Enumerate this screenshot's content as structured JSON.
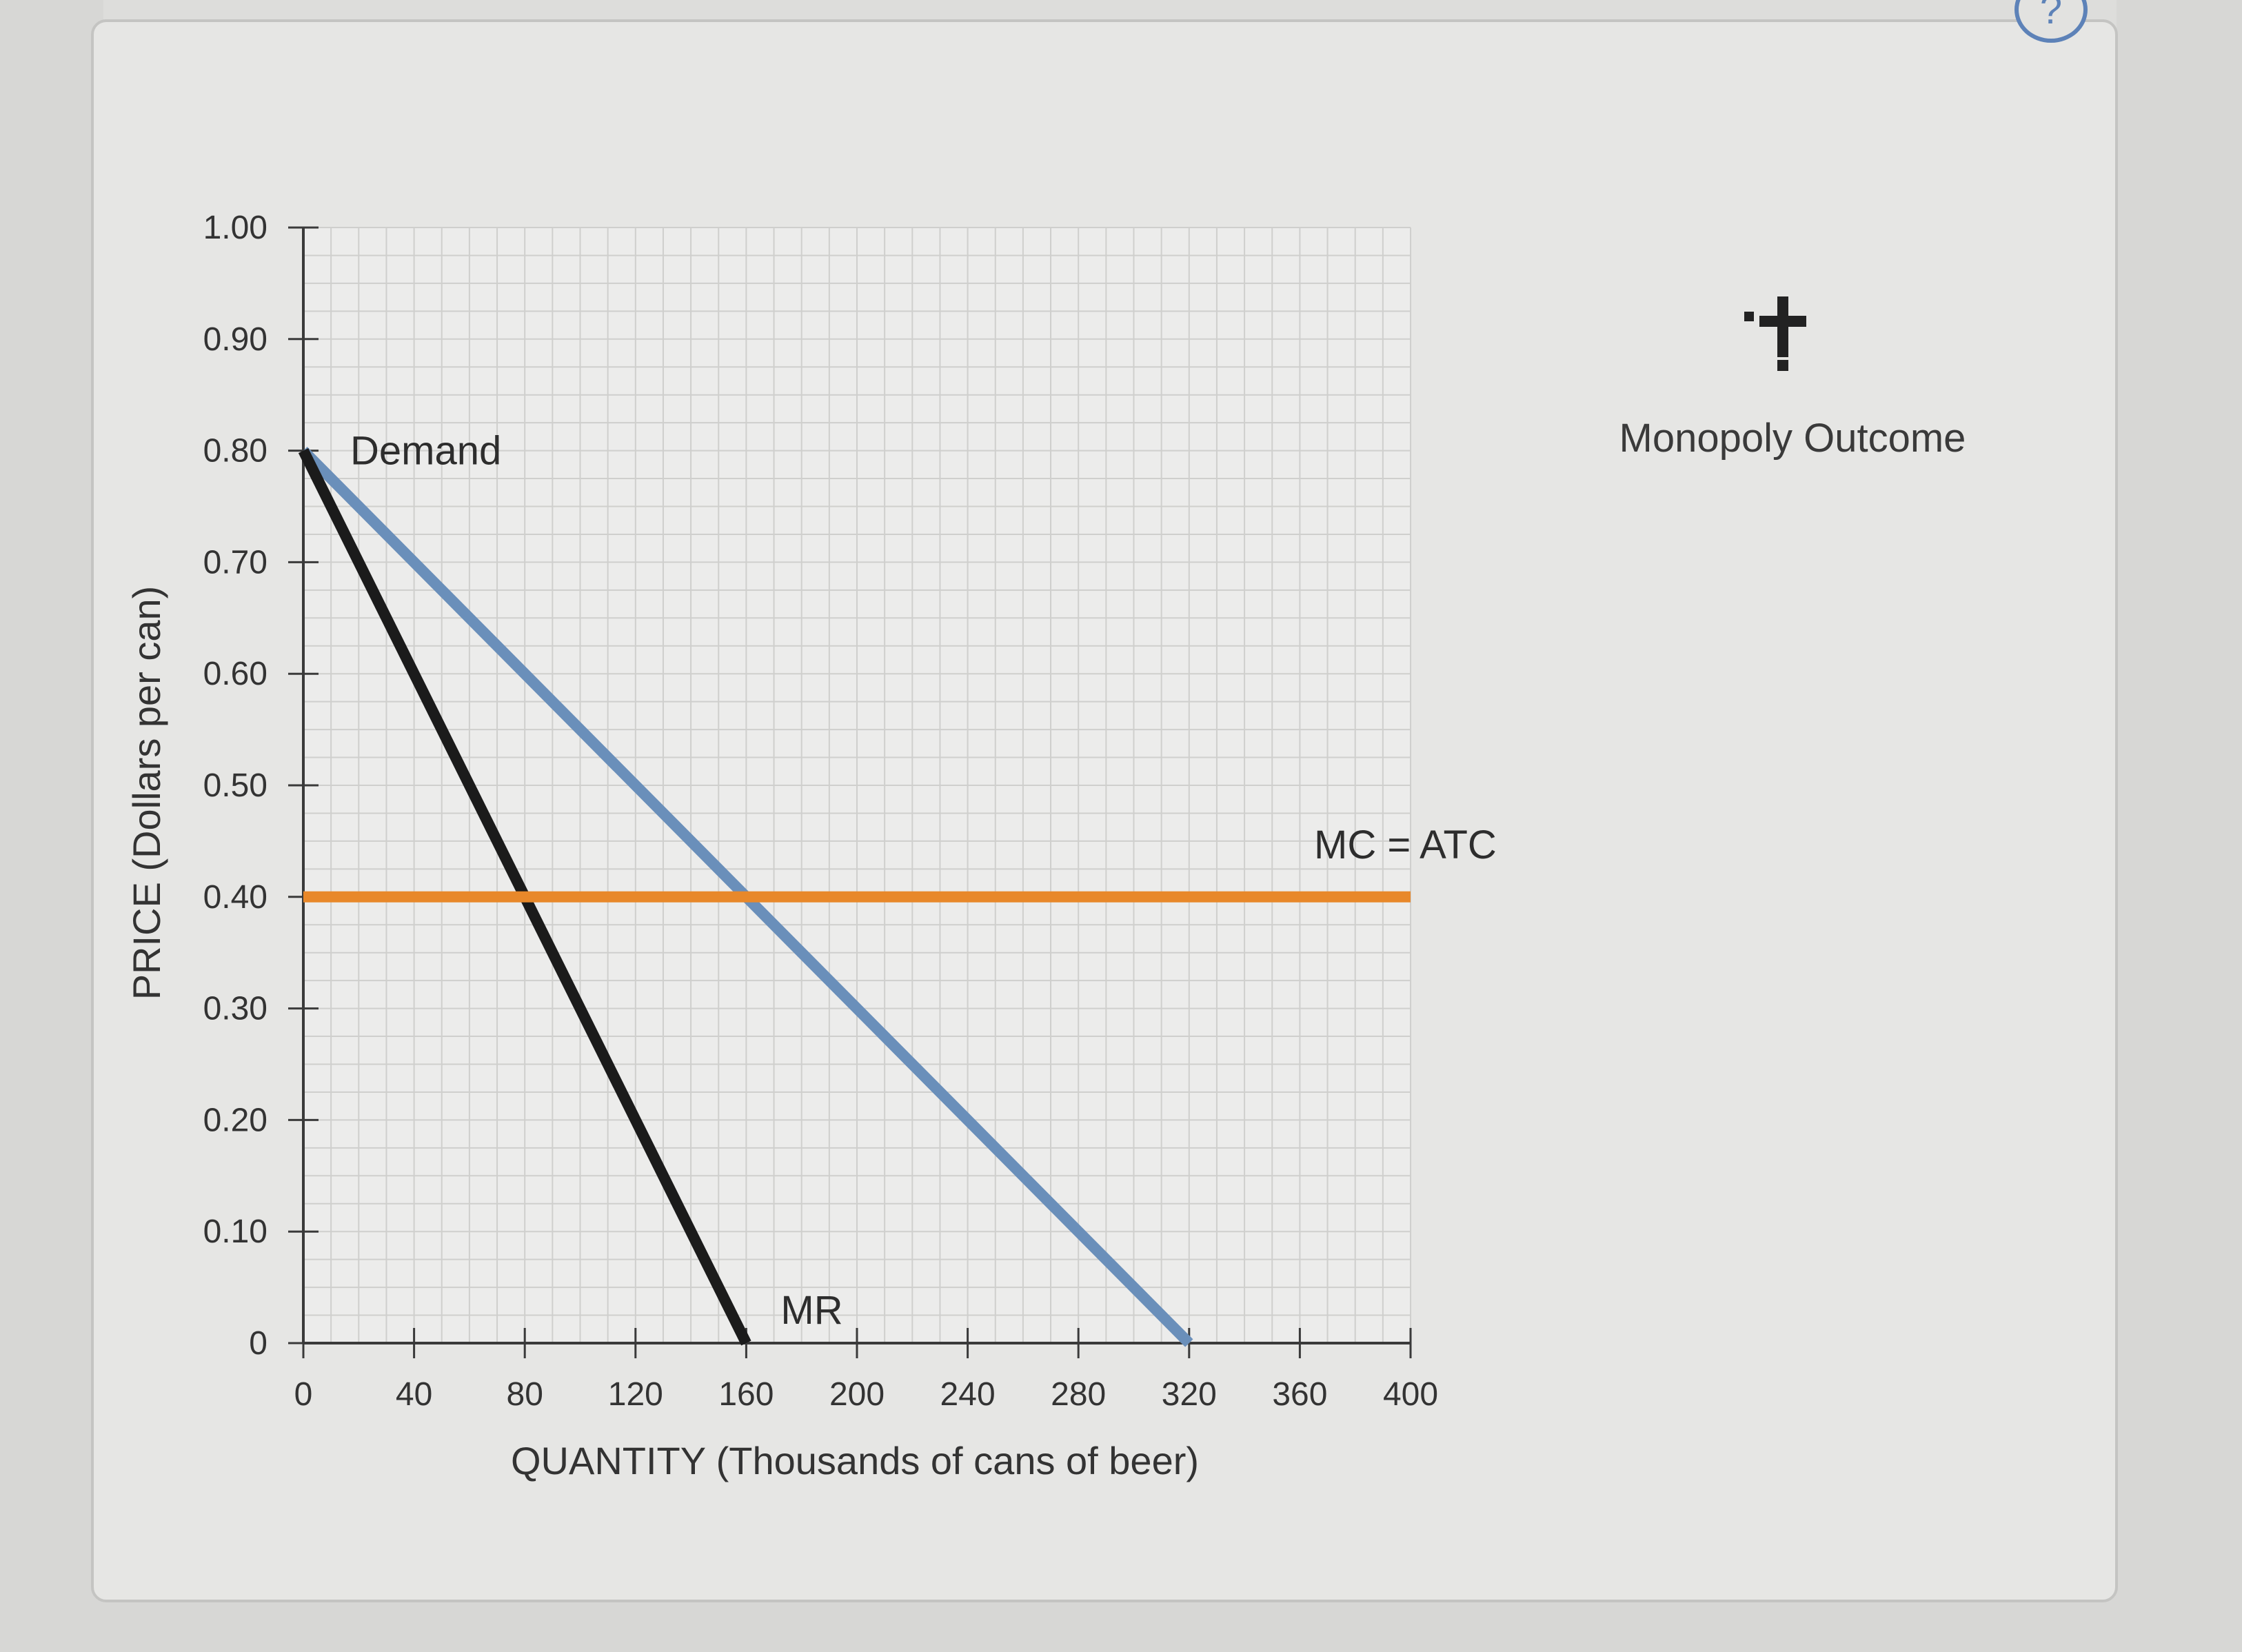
{
  "header": {
    "help_label": "?"
  },
  "tool": {
    "icon": "plus-icon",
    "label": "Monopoly Outcome"
  },
  "chart_data": {
    "type": "line",
    "title": "",
    "xlabel": "QUANTITY (Thousands of cans of beer)",
    "ylabel": "PRICE (Dollars per can)",
    "xlim": [
      0,
      400
    ],
    "ylim": [
      0,
      1.0
    ],
    "x_ticks": [
      0,
      40,
      80,
      120,
      160,
      200,
      240,
      280,
      320,
      360,
      400
    ],
    "x_tick_labels": [
      "0",
      "40",
      "80",
      "120",
      "160",
      "200",
      "240",
      "280",
      "320",
      "360",
      "400"
    ],
    "y_ticks": [
      0,
      0.1,
      0.2,
      0.3,
      0.4,
      0.5,
      0.6,
      0.7,
      0.8,
      0.9,
      1.0
    ],
    "y_tick_labels": [
      "0",
      "0.10",
      "0.20",
      "0.30",
      "0.40",
      "0.50",
      "0.60",
      "0.70",
      "0.80",
      "0.90",
      "1.00"
    ],
    "grid": true,
    "series": [
      {
        "name": "Demand",
        "color": "#6a8fba",
        "x": [
          0,
          320
        ],
        "y": [
          0.8,
          0
        ]
      },
      {
        "name": "MR",
        "color": "#1b1b1b",
        "x": [
          0,
          160
        ],
        "y": [
          0.8,
          0
        ]
      },
      {
        "name": "MC = ATC",
        "color": "#e8882a",
        "x": [
          0,
          400
        ],
        "y": [
          0.4,
          0.4
        ]
      }
    ]
  }
}
